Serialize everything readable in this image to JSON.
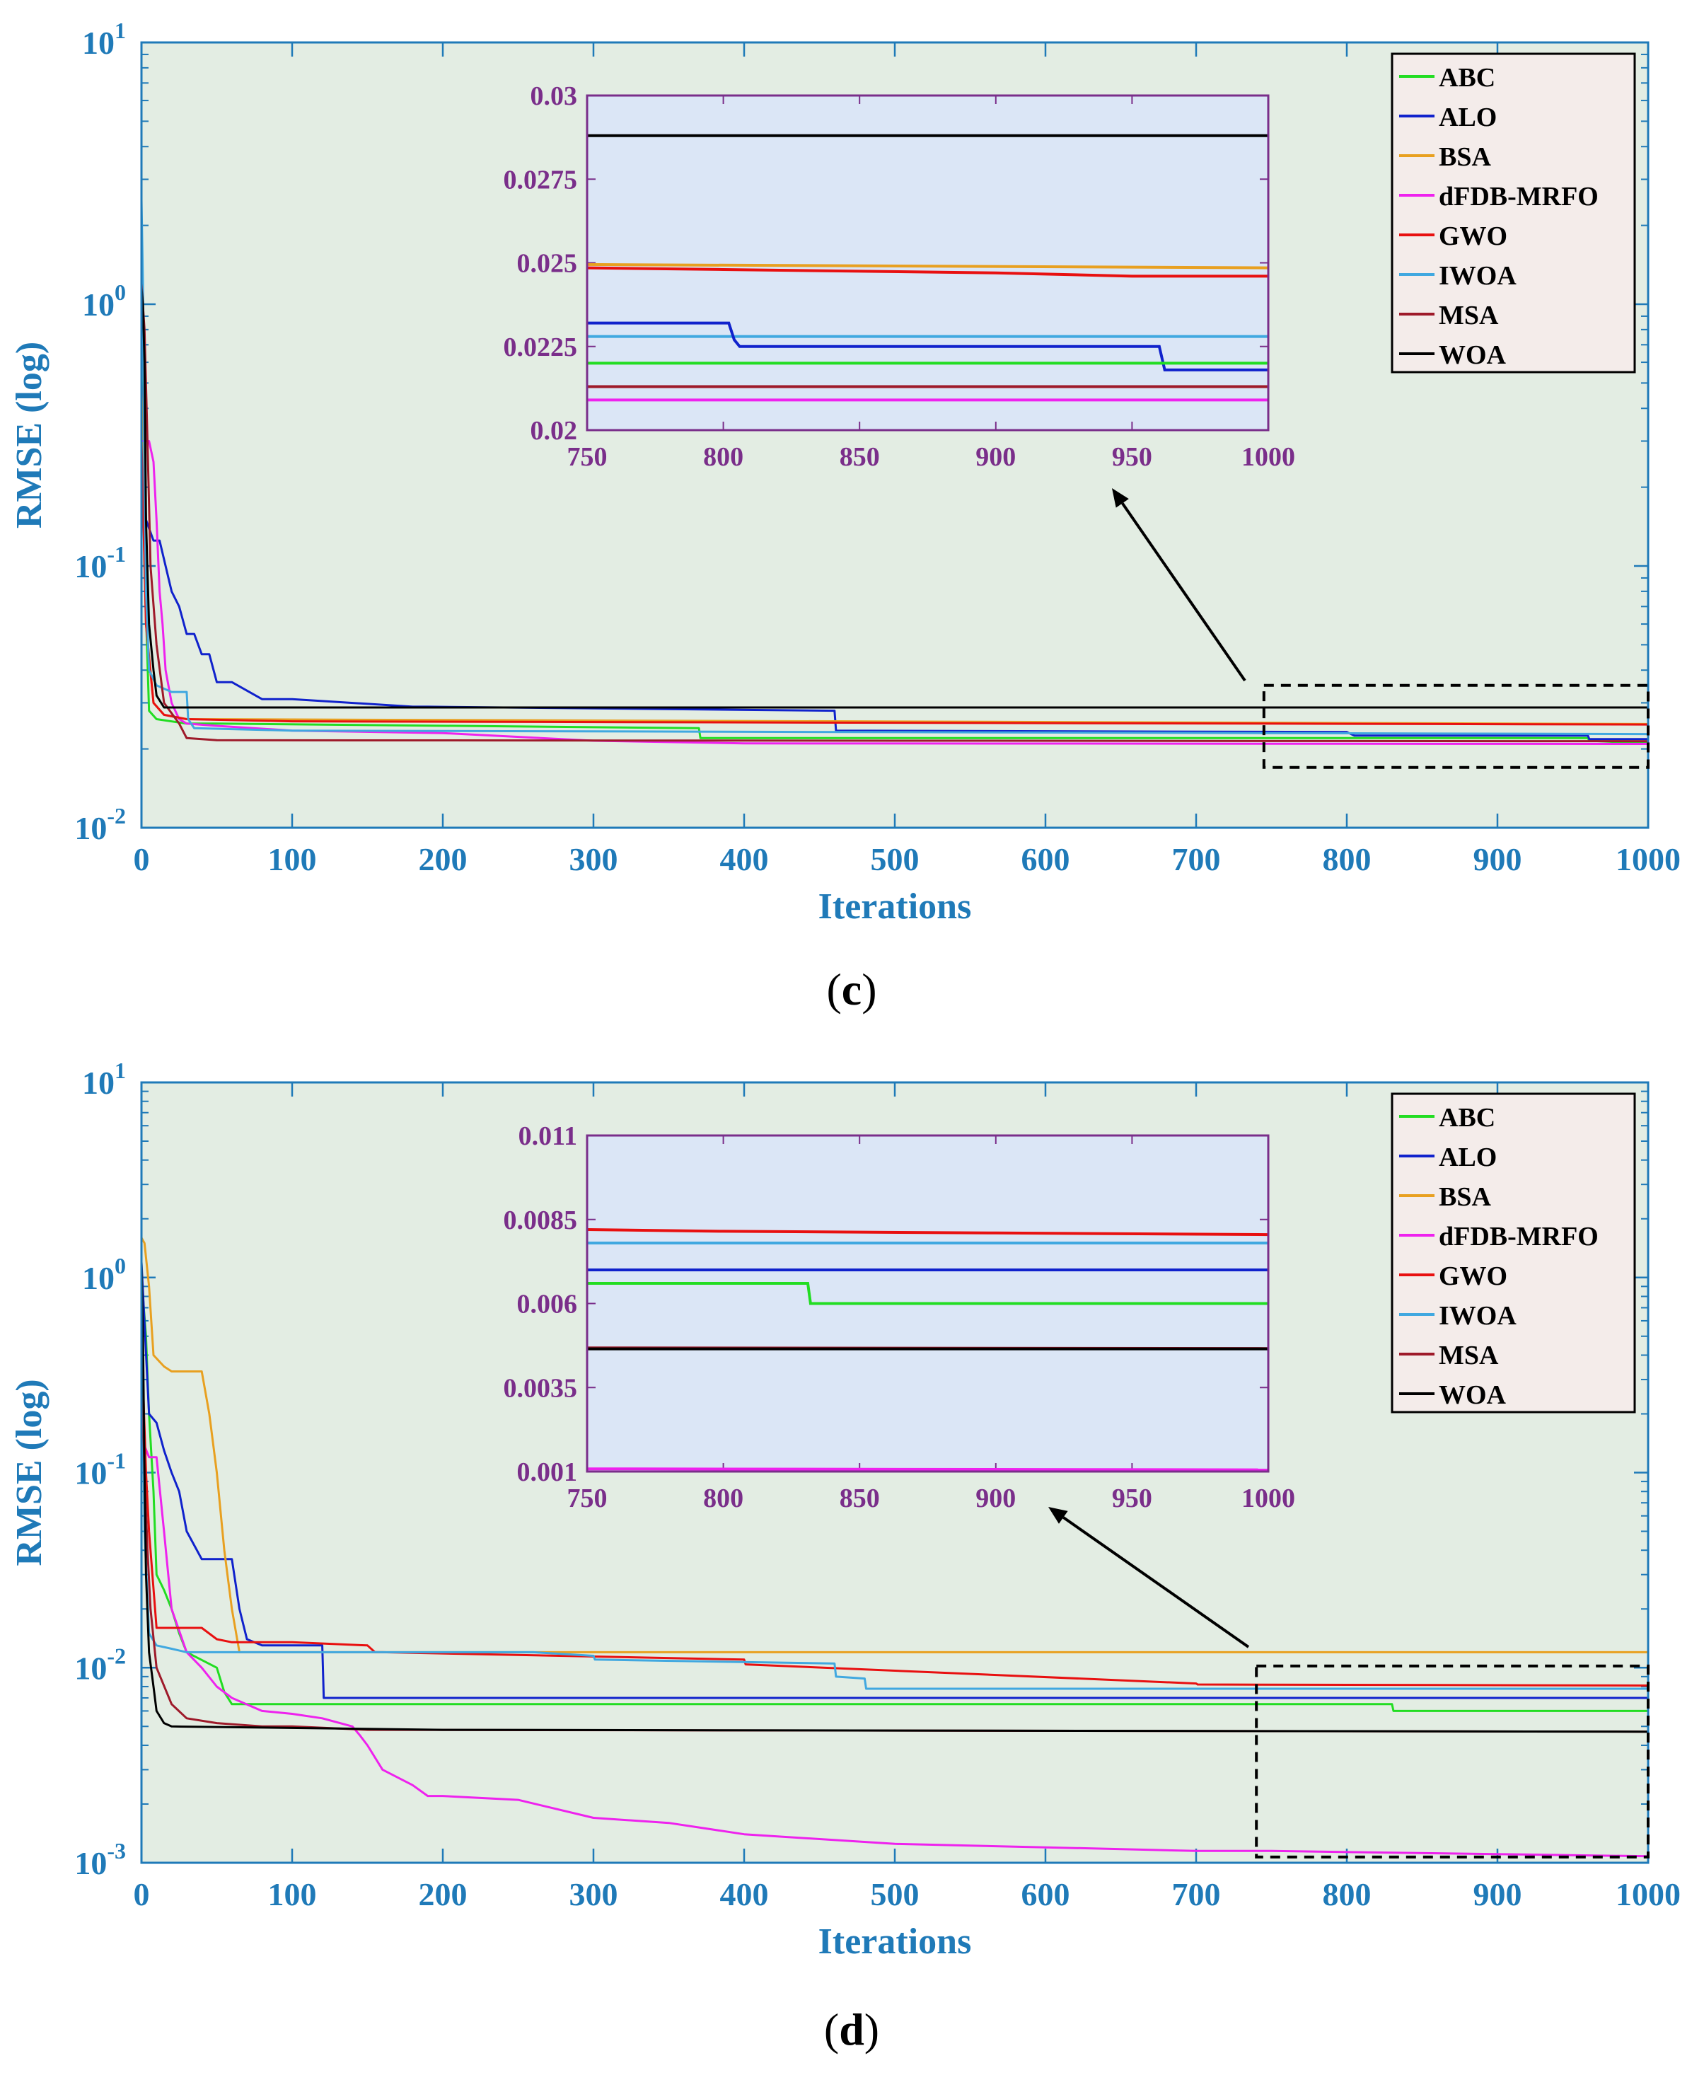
{
  "colors": {
    "ABC": "#22dd22",
    "ALO": "#1022cc",
    "BSA": "#e8a020",
    "dFDB-MRFO": "#ee22ee",
    "GWO": "#e81010",
    "IWOA": "#40a8e0",
    "MSA": "#9e1a2a",
    "WOA": "#000000",
    "axis_text": "#1f7ab8",
    "inset_text": "#7a2e8a",
    "plot_bg": "#e3ede3",
    "inset_bg": "#dbe6f6"
  },
  "chart_data": [
    {
      "type": "line",
      "panel": "c",
      "caption_open": "(",
      "caption_letter": "c",
      "caption_close": ")",
      "xlabel": "Iterations",
      "ylabel": "RMSE (log)",
      "yscale": "log",
      "xlim": [
        0,
        1000
      ],
      "ylim": [
        0.01,
        10
      ],
      "xticks": [
        "0",
        "100",
        "200",
        "300",
        "400",
        "500",
        "600",
        "700",
        "800",
        "900",
        "1000"
      ],
      "yticks": [
        {
          "base": "10",
          "exp": "-2",
          "value": 0.01
        },
        {
          "base": "10",
          "exp": "-1",
          "value": 0.1
        },
        {
          "base": "10",
          "exp": "0",
          "value": 1
        },
        {
          "base": "10",
          "exp": "1",
          "value": 10
        }
      ],
      "legend": [
        "ABC",
        "ALO",
        "BSA",
        "dFDB-MRFO",
        "GWO",
        "IWOA",
        "MSA",
        "WOA"
      ],
      "zoom_box": {
        "x": [
          745,
          1000
        ],
        "y": [
          0.017,
          0.035
        ]
      },
      "series": [
        {
          "name": "ABC",
          "x": [
            0,
            2,
            5,
            10,
            30,
            50,
            370,
            371,
            960,
            961,
            1000
          ],
          "y": [
            0.6,
            0.1,
            0.028,
            0.026,
            0.025,
            0.025,
            0.024,
            0.022,
            0.022,
            0.0215,
            0.021
          ]
        },
        {
          "name": "ALO",
          "x": [
            0,
            3,
            8,
            12,
            20,
            25,
            30,
            35,
            40,
            45,
            50,
            60,
            80,
            100,
            180,
            190,
            460,
            461,
            800,
            805,
            960,
            961,
            1000
          ],
          "y": [
            0.5,
            0.15,
            0.125,
            0.125,
            0.08,
            0.07,
            0.055,
            0.055,
            0.046,
            0.046,
            0.036,
            0.036,
            0.031,
            0.031,
            0.029,
            0.029,
            0.028,
            0.0235,
            0.0232,
            0.0225,
            0.0225,
            0.0218,
            0.0218
          ]
        },
        {
          "name": "BSA",
          "x": [
            0,
            3,
            8,
            15,
            30,
            1000
          ],
          "y": [
            0.5,
            0.06,
            0.03,
            0.027,
            0.026,
            0.0249
          ]
        },
        {
          "name": "dFDB-MRFO",
          "x": [
            0,
            5,
            8,
            10,
            12,
            14,
            16,
            20,
            25,
            30,
            50,
            100,
            200,
            300,
            400,
            1000
          ],
          "y": [
            0.3,
            0.3,
            0.25,
            0.15,
            0.08,
            0.06,
            0.04,
            0.03,
            0.026,
            0.025,
            0.0245,
            0.0235,
            0.023,
            0.0215,
            0.021,
            0.0209
          ]
        },
        {
          "name": "GWO",
          "x": [
            0,
            3,
            5,
            8,
            15,
            30,
            100,
            1000
          ],
          "y": [
            0.3,
            0.06,
            0.045,
            0.03,
            0.027,
            0.026,
            0.0255,
            0.0248
          ]
        },
        {
          "name": "IWOA",
          "x": [
            0,
            1,
            2,
            3,
            5,
            10,
            20,
            30,
            31,
            35,
            100,
            1000
          ],
          "y": [
            2.5,
            1.2,
            0.2,
            0.08,
            0.04,
            0.035,
            0.033,
            0.033,
            0.026,
            0.024,
            0.0235,
            0.0228
          ]
        },
        {
          "name": "MSA",
          "x": [
            0,
            2,
            4,
            6,
            10,
            15,
            25,
            30,
            50,
            1000
          ],
          "y": [
            1.2,
            0.8,
            0.3,
            0.1,
            0.05,
            0.03,
            0.025,
            0.022,
            0.0216,
            0.0214
          ]
        },
        {
          "name": "WOA",
          "x": [
            0,
            1,
            2,
            3,
            5,
            8,
            10,
            15,
            1000
          ],
          "y": [
            1.15,
            1.0,
            0.6,
            0.15,
            0.06,
            0.04,
            0.032,
            0.0288,
            0.0288
          ]
        }
      ],
      "inset": {
        "xlim": [
          750,
          1000
        ],
        "ylim": [
          0.02,
          0.03
        ],
        "xticks": [
          "750",
          "800",
          "850",
          "900",
          "950",
          "1000"
        ],
        "yticks": [
          {
            "label": "0.02",
            "value": 0.02
          },
          {
            "label": "0.0225",
            "value": 0.0225
          },
          {
            "label": "0.025",
            "value": 0.025
          },
          {
            "label": "0.0275",
            "value": 0.0275
          },
          {
            "label": "0.03",
            "value": 0.03
          }
        ],
        "series": [
          {
            "name": "WOA",
            "x": [
              750,
              1000
            ],
            "y": [
              0.0288,
              0.0288
            ]
          },
          {
            "name": "BSA",
            "x": [
              750,
              1000
            ],
            "y": [
              0.02495,
              0.02485
            ]
          },
          {
            "name": "GWO",
            "x": [
              750,
              800,
              900,
              950,
              1000
            ],
            "y": [
              0.02485,
              0.0248,
              0.0247,
              0.0246,
              0.0246
            ]
          },
          {
            "name": "IWOA",
            "x": [
              750,
              1000
            ],
            "y": [
              0.0228,
              0.0228
            ]
          },
          {
            "name": "ALO",
            "x": [
              750,
              802,
              804,
              806,
              960,
              962,
              1000
            ],
            "y": [
              0.0232,
              0.0232,
              0.0227,
              0.0225,
              0.0225,
              0.0218,
              0.0218
            ]
          },
          {
            "name": "ABC",
            "x": [
              750,
              1000
            ],
            "y": [
              0.022,
              0.022
            ]
          },
          {
            "name": "MSA",
            "x": [
              750,
              1000
            ],
            "y": [
              0.0213,
              0.0213
            ]
          },
          {
            "name": "dFDB-MRFO",
            "x": [
              750,
              1000
            ],
            "y": [
              0.0209,
              0.0209
            ]
          }
        ]
      }
    },
    {
      "type": "line",
      "panel": "d",
      "caption_open": "(",
      "caption_letter": "d",
      "caption_close": ")",
      "xlabel": "Iterations",
      "ylabel": "RMSE (log)",
      "yscale": "log",
      "xlim": [
        0,
        1000
      ],
      "ylim": [
        0.001,
        10
      ],
      "xticks": [
        "0",
        "100",
        "200",
        "300",
        "400",
        "500",
        "600",
        "700",
        "800",
        "900",
        "1000"
      ],
      "yticks": [
        {
          "base": "10",
          "exp": "-3",
          "value": 0.001
        },
        {
          "base": "10",
          "exp": "-2",
          "value": 0.01
        },
        {
          "base": "10",
          "exp": "-1",
          "value": 0.1
        },
        {
          "base": "10",
          "exp": "0",
          "value": 1
        },
        {
          "base": "10",
          "exp": "1",
          "value": 10
        }
      ],
      "legend": [
        "ABC",
        "ALO",
        "BSA",
        "dFDB-MRFO",
        "GWO",
        "IWOA",
        "MSA",
        "WOA"
      ],
      "zoom_box": {
        "x": [
          740,
          1000
        ],
        "y": [
          0.00107,
          0.0102
        ]
      },
      "series": [
        {
          "name": "ABC",
          "x": [
            0,
            3,
            5,
            8,
            10,
            15,
            20,
            25,
            30,
            50,
            55,
            60,
            830,
            831,
            1000
          ],
          "y": [
            1.0,
            0.5,
            0.2,
            0.08,
            0.03,
            0.025,
            0.02,
            0.015,
            0.012,
            0.01,
            0.0075,
            0.0065,
            0.0065,
            0.006,
            0.006
          ]
        },
        {
          "name": "ALO",
          "x": [
            0,
            5,
            10,
            15,
            20,
            25,
            30,
            40,
            50,
            60,
            65,
            70,
            80,
            100,
            120,
            121,
            1000
          ],
          "y": [
            1.2,
            0.2,
            0.18,
            0.13,
            0.1,
            0.08,
            0.05,
            0.036,
            0.036,
            0.036,
            0.02,
            0.014,
            0.013,
            0.013,
            0.013,
            0.007,
            0.007
          ]
        },
        {
          "name": "BSA",
          "x": [
            0,
            2,
            5,
            8,
            15,
            20,
            40,
            45,
            50,
            55,
            60,
            65,
            1000
          ],
          "y": [
            1.6,
            1.5,
            0.9,
            0.4,
            0.35,
            0.33,
            0.33,
            0.2,
            0.1,
            0.04,
            0.02,
            0.012,
            0.012
          ]
        },
        {
          "name": "dFDB-MRFO",
          "x": [
            0,
            5,
            10,
            15,
            20,
            30,
            40,
            50,
            60,
            80,
            100,
            120,
            140,
            145,
            150,
            160,
            180,
            190,
            200,
            250,
            300,
            350,
            400,
            500,
            600,
            700,
            750,
            1000
          ],
          "y": [
            0.15,
            0.12,
            0.12,
            0.05,
            0.02,
            0.012,
            0.01,
            0.008,
            0.007,
            0.006,
            0.0058,
            0.0055,
            0.005,
            0.0045,
            0.004,
            0.003,
            0.0025,
            0.0022,
            0.0022,
            0.0021,
            0.0017,
            0.0016,
            0.0014,
            0.00125,
            0.0012,
            0.00115,
            0.00115,
            0.00108
          ]
        },
        {
          "name": "GWO",
          "x": [
            0,
            3,
            5,
            10,
            40,
            50,
            60,
            100,
            150,
            155,
            160,
            400,
            401,
            700,
            701,
            1000
          ],
          "y": [
            0.5,
            0.1,
            0.05,
            0.016,
            0.016,
            0.014,
            0.0135,
            0.0135,
            0.013,
            0.012,
            0.012,
            0.011,
            0.0104,
            0.0083,
            0.0082,
            0.0081
          ]
        },
        {
          "name": "IWOA",
          "x": [
            0,
            2,
            5,
            10,
            20,
            30,
            100,
            260,
            300,
            301,
            460,
            461,
            480,
            481,
            1000
          ],
          "y": [
            0.8,
            0.05,
            0.015,
            0.013,
            0.0125,
            0.012,
            0.012,
            0.012,
            0.0115,
            0.011,
            0.0105,
            0.009,
            0.0088,
            0.0078,
            0.0078
          ]
        },
        {
          "name": "MSA",
          "x": [
            0,
            2,
            4,
            6,
            10,
            20,
            30,
            50,
            80,
            100,
            150,
            1000
          ],
          "y": [
            0.4,
            0.1,
            0.04,
            0.02,
            0.01,
            0.0065,
            0.0055,
            0.0052,
            0.005,
            0.005,
            0.0048,
            0.0047
          ]
        },
        {
          "name": "WOA",
          "x": [
            0,
            1,
            2,
            3,
            5,
            8,
            10,
            15,
            20,
            200,
            1000
          ],
          "y": [
            1.2,
            0.5,
            0.1,
            0.03,
            0.012,
            0.008,
            0.006,
            0.0052,
            0.005,
            0.0048,
            0.0047
          ]
        }
      ],
      "inset": {
        "xlim": [
          750,
          1000
        ],
        "ylim": [
          0.001,
          0.011
        ],
        "xticks": [
          "750",
          "800",
          "850",
          "900",
          "950",
          "1000"
        ],
        "yticks": [
          {
            "label": "0.001",
            "value": 0.001
          },
          {
            "label": "0.0035",
            "value": 0.0035
          },
          {
            "label": "0.006",
            "value": 0.006
          },
          {
            "label": "0.0085",
            "value": 0.0085
          },
          {
            "label": "0.011",
            "value": 0.011
          }
        ],
        "series": [
          {
            "name": "GWO",
            "x": [
              750,
              800,
              900,
              1000
            ],
            "y": [
              0.0082,
              0.00815,
              0.0081,
              0.00805
            ]
          },
          {
            "name": "IWOA",
            "x": [
              750,
              1000
            ],
            "y": [
              0.0078,
              0.0078
            ]
          },
          {
            "name": "ALO",
            "x": [
              750,
              1000
            ],
            "y": [
              0.007,
              0.007
            ]
          },
          {
            "name": "ABC",
            "x": [
              750,
              831,
              832,
              1000
            ],
            "y": [
              0.0066,
              0.0066,
              0.006,
              0.006
            ]
          },
          {
            "name": "MSA",
            "x": [
              750,
              1000
            ],
            "y": [
              0.00468,
              0.00466
            ]
          },
          {
            "name": "WOA",
            "x": [
              750,
              1000
            ],
            "y": [
              0.00465,
              0.00465
            ]
          },
          {
            "name": "dFDB-MRFO",
            "x": [
              750,
              1000
            ],
            "y": [
              0.00108,
              0.00105
            ]
          }
        ]
      }
    }
  ]
}
